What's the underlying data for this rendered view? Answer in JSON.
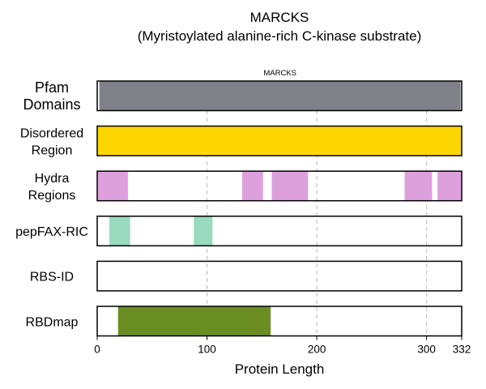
{
  "chart_data": {
    "type": "bar",
    "title": "MARCKS",
    "subtitle": "(Myristoylated alanine-rich C-kinase substrate)",
    "xlabel": "Protein Length",
    "xlim": [
      0,
      332
    ],
    "xticks": [
      0,
      100,
      200,
      300,
      332
    ],
    "gridlines": [
      100,
      200,
      300
    ],
    "grid": "vertical dashed",
    "tracks": [
      {
        "name_lines": [
          "Pfam",
          "Domains"
        ],
        "color": "#808088",
        "big": true,
        "segments": [
          {
            "start": 2,
            "end": 331,
            "label": "MARCKS"
          }
        ]
      },
      {
        "name_lines": [
          "Disordered",
          "Region"
        ],
        "color": "#ffd700",
        "segments": [
          {
            "start": 0,
            "end": 332
          }
        ]
      },
      {
        "name_lines": [
          "Hydra",
          "Regions"
        ],
        "color": "#dda0dd",
        "segments": [
          {
            "start": 0,
            "end": 28
          },
          {
            "start": 132,
            "end": 151
          },
          {
            "start": 159,
            "end": 192
          },
          {
            "start": 280,
            "end": 305
          },
          {
            "start": 310,
            "end": 332
          }
        ]
      },
      {
        "name_lines": [
          "pepFAX-RIC"
        ],
        "color": "#99dbbe",
        "segments": [
          {
            "start": 11,
            "end": 30
          },
          {
            "start": 88,
            "end": 105
          }
        ]
      },
      {
        "name_lines": [
          "RBS-ID"
        ],
        "color": "#6b8e23",
        "segments": []
      },
      {
        "name_lines": [
          "RBDmap"
        ],
        "color": "#6b8e23",
        "segments": [
          {
            "start": 19,
            "end": 158
          }
        ]
      }
    ]
  }
}
